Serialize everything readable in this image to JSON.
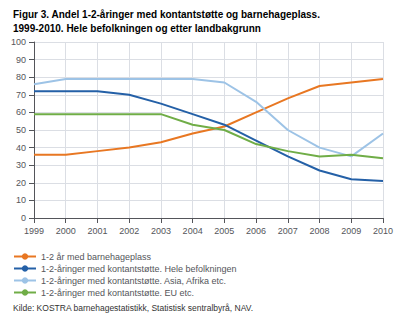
{
  "chart_data": {
    "type": "line",
    "title": "Figur 3. Andel 1-2-åringer med kontantstøtte og barnehageplass.",
    "subtitle": "1999-2010. Hele befolkningen og etter landbakgrunn",
    "source": "Kilde: KOSTRA barnehagestatistikk, Statistisk sentralbyrå, NAV.",
    "x": [
      1999,
      2000,
      2001,
      2002,
      2003,
      2004,
      2005,
      2006,
      2007,
      2008,
      2009,
      2010
    ],
    "series": [
      {
        "name": "1-2 år med barnehageplass",
        "color": "#e87722",
        "values": [
          36,
          36,
          38,
          40,
          43,
          48,
          52,
          60,
          68,
          75,
          77,
          79
        ]
      },
      {
        "name": "1-2-åringer med kontantstøtte. Hele befolkningen",
        "color": "#2460a7",
        "values": [
          72,
          72,
          72,
          70,
          65,
          59,
          53,
          44,
          35,
          27,
          22,
          21
        ]
      },
      {
        "name": "1-2-åringer med kontantstøtte. Asia, Afrika etc.",
        "color": "#9dc3e6",
        "values": [
          76,
          79,
          79,
          79,
          79,
          79,
          77,
          66,
          50,
          40,
          35,
          48
        ]
      },
      {
        "name": "1-2-åringer med kontantstøtte. EU etc.",
        "color": "#70ad47",
        "values": [
          59,
          59,
          59,
          59,
          59,
          53,
          50,
          42,
          38,
          35,
          36,
          34
        ]
      }
    ],
    "xlim": [
      1999,
      2010
    ],
    "xticks": [
      1999,
      2000,
      2001,
      2002,
      2003,
      2004,
      2005,
      2006,
      2007,
      2008,
      2009,
      2010
    ],
    "ylim": [
      0,
      100
    ],
    "yticks": [
      0,
      10,
      20,
      30,
      40,
      50,
      60,
      70,
      80,
      90,
      100
    ],
    "grid": true,
    "legend": "bottom"
  }
}
